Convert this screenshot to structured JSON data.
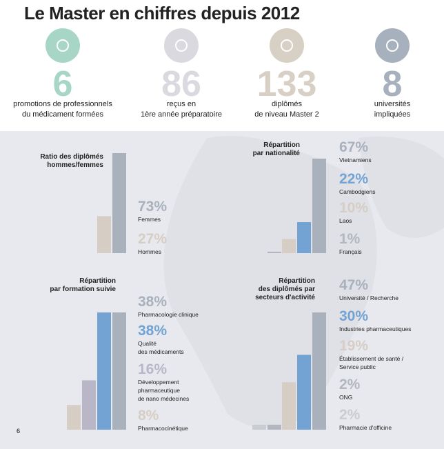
{
  "header": {
    "title": "Le Master en chiffres depuis 2012"
  },
  "stats": [
    {
      "number": "6",
      "caption": "promotions de professionnels\ndu médicament formées",
      "color": "#a8d6c6"
    },
    {
      "number": "86",
      "caption": "reçus en\n1ère année préparatoire",
      "color": "#d9d9df"
    },
    {
      "number": "133",
      "caption": "diplômés\nde niveau Master 2",
      "color": "#d8cfc5"
    },
    {
      "number": "8",
      "caption": "universités\nimpliquées",
      "color": "#a7b0bd"
    }
  ],
  "chart_data": [
    {
      "type": "bar",
      "title": "Ratio des diplômés\nhommes/femmes",
      "categories": [
        "Femmes",
        "Hommes"
      ],
      "values": [
        73,
        27
      ],
      "value_labels": [
        "73%",
        "27%"
      ],
      "colors": [
        "#a9b1bd",
        "#d6cdc4"
      ]
    },
    {
      "type": "bar",
      "title": "Répartition\npar nationalité",
      "categories": [
        "Vietnamiens",
        "Cambodgiens",
        "Laos",
        "Français"
      ],
      "values": [
        67,
        22,
        10,
        1
      ],
      "value_labels": [
        "67%",
        "22%",
        "10%",
        "1%"
      ],
      "colors": [
        "#a9b1bd",
        "#72a3d3",
        "#d6cdc4",
        "#b3b6bf"
      ]
    },
    {
      "type": "bar",
      "title": "Répartition\npar formation suivie",
      "categories": [
        "Pharmacologie clinique",
        "Qualité\ndes médicaments",
        "Développement\npharmaceutique\nde nano médecines",
        "Pharmacocinétique"
      ],
      "values": [
        38,
        38,
        16,
        8
      ],
      "value_labels": [
        "38%",
        "38%",
        "16%",
        "8%"
      ],
      "colors": [
        "#a9b1bd",
        "#72a3d3",
        "#b9b6c8",
        "#d6cdc4"
      ]
    },
    {
      "type": "bar",
      "title": "Répartition\ndes diplômés par\nsecteurs d'activité",
      "categories": [
        "Université / Recherche",
        "Industries pharmaceutiques",
        "Établissement de santé /\nService public",
        "ONG",
        "Pharmacie d'officine"
      ],
      "values": [
        47,
        30,
        19,
        2,
        2
      ],
      "value_labels": [
        "47%",
        "30%",
        "19%",
        "2%",
        "2%"
      ],
      "colors": [
        "#a9b1bd",
        "#72a3d3",
        "#d6cdc4",
        "#b3b6bf",
        "#c9ccd1"
      ]
    }
  ],
  "page_number": "6"
}
